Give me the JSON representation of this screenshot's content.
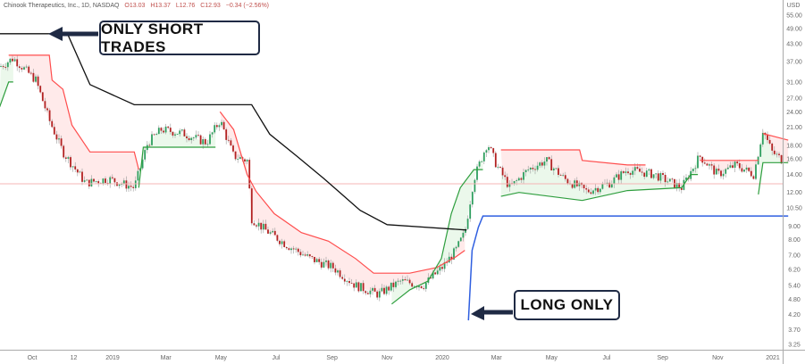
{
  "header": {
    "symbol": "Chinook Therapeutics, Inc., 1D, NASDAQ",
    "open": "O13.03",
    "high": "H13.37",
    "low": "L12.76",
    "close": "C12.93",
    "change": "−0.34 (−2.56%)",
    "currency": "USD"
  },
  "annotations": {
    "short": "ONLY SHORT TRADES",
    "long": "LONG ONLY"
  },
  "colors": {
    "up": "#26a69a",
    "down": "#ef5350",
    "supertrend_up": "#2e9e3e",
    "supertrend_down": "#ff4d4d",
    "short_line": "#111111",
    "long_line": "#2f5fe0",
    "last_price_line": "#f5b5b5",
    "annotation": "#1f2a44"
  },
  "chart_data": {
    "type": "candlestick",
    "scale": "log",
    "ylim": [
      3.1,
      60
    ],
    "xlim": [
      "2018-08-29",
      "2021-01-18"
    ],
    "y_ticks": [
      "55.00",
      "49.00",
      "43.00",
      "37.00",
      "31.00",
      "27.00",
      "24.00",
      "21.00",
      "18.00",
      "16.00",
      "14.00",
      "12.00",
      "10.50",
      "9.00",
      "8.00",
      "7.00",
      "6.20",
      "5.40",
      "4.80",
      "4.20",
      "3.70",
      "3.25"
    ],
    "x_ticks": [
      {
        "label": "Oct",
        "date": "2018-10-04"
      },
      {
        "label": "12",
        "date": "2018-11-19"
      },
      {
        "label": "2019",
        "date": "2019-01-01"
      },
      {
        "label": "Mar",
        "date": "2019-03-01"
      },
      {
        "label": "May",
        "date": "2019-05-01"
      },
      {
        "label": "Jul",
        "date": "2019-07-01"
      },
      {
        "label": "Sep",
        "date": "2019-09-01"
      },
      {
        "label": "Nov",
        "date": "2019-11-01"
      },
      {
        "label": "2020",
        "date": "2020-01-01"
      },
      {
        "label": "Mar",
        "date": "2020-03-01"
      },
      {
        "label": "May",
        "date": "2020-05-01"
      },
      {
        "label": "Jul",
        "date": "2020-07-01"
      },
      {
        "label": "Sep",
        "date": "2020-09-01"
      },
      {
        "label": "Nov",
        "date": "2020-11-01"
      },
      {
        "label": "2021",
        "date": "2021-01-01"
      }
    ],
    "close": [
      [
        "2018-08-29",
        35.3
      ],
      [
        "2018-09-13",
        38
      ],
      [
        "2018-10-08",
        31.5
      ],
      [
        "2018-10-23",
        22.3
      ],
      [
        "2018-11-07",
        17
      ],
      [
        "2018-12-02",
        13
      ],
      [
        "2018-12-27",
        13.5
      ],
      [
        "2019-01-25",
        12.5
      ],
      [
        "2019-02-09",
        18.4
      ],
      [
        "2019-02-24",
        20.6
      ],
      [
        "2019-03-21",
        19.9
      ],
      [
        "2019-04-15",
        18.4
      ],
      [
        "2019-04-30",
        22.3
      ],
      [
        "2019-05-15",
        16.4
      ],
      [
        "2019-05-30",
        15.8
      ],
      [
        "2019-06-04",
        9.6
      ],
      [
        "2019-06-19",
        8.7
      ],
      [
        "2019-07-14",
        7.6
      ],
      [
        "2019-08-08",
        6.8
      ],
      [
        "2019-09-02",
        6.3
      ],
      [
        "2019-09-27",
        5.4
      ],
      [
        "2019-10-22",
        5.0
      ],
      [
        "2019-11-16",
        5.6
      ],
      [
        "2019-12-11",
        5.4
      ],
      [
        "2020-01-01",
        6.3
      ],
      [
        "2020-01-16",
        7.3
      ],
      [
        "2020-01-26",
        8.5
      ],
      [
        "2020-02-05",
        13.5
      ],
      [
        "2020-02-20",
        18.4
      ],
      [
        "2020-03-01",
        15.2
      ],
      [
        "2020-03-16",
        12.5
      ],
      [
        "2020-04-05",
        14.6
      ],
      [
        "2020-04-25",
        15.8
      ],
      [
        "2020-05-15",
        13.5
      ],
      [
        "2020-06-09",
        12.1
      ],
      [
        "2020-07-04",
        13
      ],
      [
        "2020-07-24",
        14.6
      ],
      [
        "2020-08-23",
        14
      ],
      [
        "2020-09-22",
        12.5
      ],
      [
        "2020-10-12",
        16.4
      ],
      [
        "2020-11-01",
        14
      ],
      [
        "2020-11-21",
        15.2
      ],
      [
        "2020-12-11",
        14
      ],
      [
        "2020-12-21",
        20.6
      ],
      [
        "2020-12-31",
        17
      ],
      [
        "2021-01-16",
        15.4
      ]
    ],
    "last_price": 12.93,
    "supertrend_down": [
      [
        [
          "2018-09-08",
          39
        ],
        [
          "2018-10-23",
          39
        ],
        [
          "2018-10-26",
          31.5
        ],
        [
          "2018-11-07",
          29.1
        ],
        [
          "2018-11-17",
          21.4
        ],
        [
          "2018-12-07",
          17
        ],
        [
          "2019-01-25",
          17
        ],
        [
          "2019-01-30",
          14.6
        ]
      ],
      [
        [
          "2019-04-30",
          24
        ],
        [
          "2019-05-15",
          20.6
        ],
        [
          "2019-05-30",
          14
        ],
        [
          "2019-06-09",
          12.1
        ],
        [
          "2019-06-29",
          10
        ],
        [
          "2019-07-29",
          8.5
        ],
        [
          "2019-08-28",
          7.9
        ],
        [
          "2019-09-27",
          6.8
        ],
        [
          "2019-10-17",
          6.0
        ],
        [
          "2019-11-26",
          6.0
        ],
        [
          "2019-12-26",
          6.3
        ],
        [
          "2020-01-16",
          6.9
        ],
        [
          "2020-01-26",
          7.3
        ]
      ],
      [
        [
          "2020-03-06",
          17.3
        ],
        [
          "2020-06-01",
          17.3
        ],
        [
          "2020-06-04",
          15.8
        ],
        [
          "2020-07-24",
          15.2
        ],
        [
          "2020-08-13",
          15.2
        ]
      ],
      [
        [
          "2020-10-12",
          15.8
        ],
        [
          "2020-12-16",
          15.8
        ]
      ],
      [
        [
          "2020-12-21",
          19.9
        ],
        [
          "2021-01-18",
          18.8
        ]
      ]
    ],
    "supertrend_up": [
      [
        [
          "2018-08-29",
          25
        ],
        [
          "2018-09-08",
          31
        ],
        [
          "2018-09-13",
          31
        ]
      ],
      [
        [
          "2019-01-30",
          12.5
        ],
        [
          "2019-02-04",
          17.7
        ],
        [
          "2019-04-25",
          17.7
        ]
      ],
      [
        [
          "2019-11-06",
          4.6
        ],
        [
          "2019-11-26",
          5.2
        ],
        [
          "2019-12-16",
          5.6
        ],
        [
          "2019-12-31",
          6.8
        ],
        [
          "2020-01-11",
          10
        ],
        [
          "2020-01-21",
          12.5
        ],
        [
          "2020-02-05",
          14.6
        ],
        [
          "2020-02-15",
          14.6
        ]
      ],
      [
        [
          "2020-03-06",
          11.6
        ],
        [
          "2020-03-26",
          12.0
        ],
        [
          "2020-06-04",
          11.2
        ],
        [
          "2020-07-24",
          12.2
        ],
        [
          "2020-09-22",
          12.5
        ],
        [
          "2020-10-02",
          14
        ],
        [
          "2020-10-10",
          14
        ]
      ],
      [
        [
          "2020-12-16",
          11.8
        ],
        [
          "2020-12-21",
          15.5
        ],
        [
          "2021-01-18",
          15.5
        ]
      ]
    ],
    "short_only_line": [
      [
        "2018-08-29",
        46.9
      ],
      [
        "2018-11-12",
        46.9
      ],
      [
        "2018-12-07",
        30.3
      ],
      [
        "2019-01-25",
        25.5
      ],
      [
        "2019-06-04",
        25.5
      ],
      [
        "2019-06-24",
        19.8
      ],
      [
        "2019-07-24",
        16.4
      ],
      [
        "2019-08-23",
        13.5
      ],
      [
        "2019-10-02",
        10.3
      ],
      [
        "2019-11-01",
        9.1
      ],
      [
        "2020-01-26",
        8.7
      ],
      [
        "2020-01-28",
        8.7
      ]
    ],
    "long_only_line": [
      [
        "2020-01-30",
        4.0
      ],
      [
        "2020-02-03",
        7.3
      ],
      [
        "2020-02-10",
        8.9
      ],
      [
        "2020-02-15",
        9.8
      ],
      [
        "2021-01-18",
        9.8
      ]
    ]
  }
}
